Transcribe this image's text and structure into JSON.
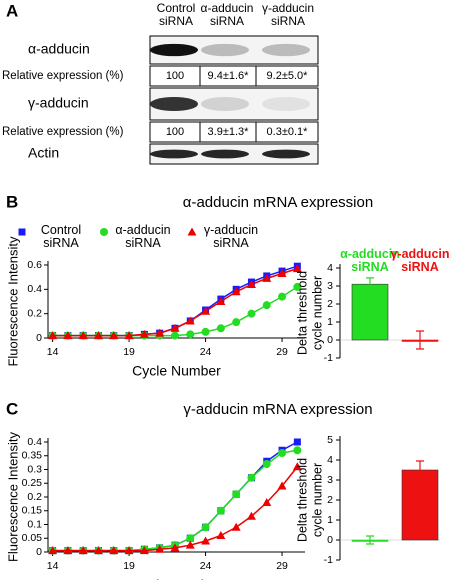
{
  "blot": {
    "panel": "A",
    "columns": [
      "Control siRNA",
      "α-adducin siRNA",
      "γ-adducin siRNA"
    ],
    "rows": [
      {
        "label": "α-adducin"
      },
      {
        "label": "Relative expression (%)",
        "values": [
          "100",
          "9.4±1.6*",
          "9.2±5.0*"
        ]
      },
      {
        "label": "γ-adducin"
      },
      {
        "label": "Relative expression (%)",
        "values": [
          "100",
          "3.9±1.3*",
          "0.3±0.1*"
        ]
      },
      {
        "label": "Actin"
      }
    ]
  },
  "chart_data": [
    {
      "type": "line",
      "panel": "B",
      "title": "α-adducin mRNA expression",
      "xlabel": "Cycle Number",
      "ylabel": "Fluorescence Intensity",
      "x": [
        14,
        15,
        16,
        17,
        18,
        19,
        20,
        21,
        22,
        23,
        24,
        25,
        26,
        27,
        28,
        29,
        30
      ],
      "xlim": [
        13.7,
        30.5
      ],
      "xticks": [
        14,
        19,
        24,
        29
      ],
      "ylim": [
        0,
        0.6
      ],
      "yticks": [
        0,
        0.2,
        0.4,
        0.6
      ],
      "legend": true,
      "series": [
        {
          "name": "Control siRNA",
          "color": "#1a1aff",
          "marker": "square",
          "values": [
            0.02,
            0.02,
            0.02,
            0.02,
            0.02,
            0.02,
            0.03,
            0.04,
            0.08,
            0.14,
            0.23,
            0.32,
            0.4,
            0.46,
            0.51,
            0.55,
            0.59
          ]
        },
        {
          "name": "α-adducin siRNA",
          "color": "#22dd22",
          "marker": "circle",
          "values": [
            0.02,
            0.02,
            0.02,
            0.02,
            0.02,
            0.02,
            0.02,
            0.02,
            0.02,
            0.03,
            0.05,
            0.08,
            0.13,
            0.2,
            0.27,
            0.34,
            0.42
          ]
        },
        {
          "name": "γ-adducin siRNA",
          "color": "#ee0000",
          "marker": "triangle",
          "values": [
            0.02,
            0.02,
            0.02,
            0.02,
            0.02,
            0.02,
            0.03,
            0.04,
            0.08,
            0.14,
            0.22,
            0.3,
            0.38,
            0.44,
            0.49,
            0.53,
            0.57
          ]
        }
      ]
    },
    {
      "type": "bar",
      "ylabel": [
        "Delta threshold",
        "cycle number"
      ],
      "categories": [
        "α-adducin siRNA",
        "γ-adducin siRNA"
      ],
      "colors": [
        "#22dd22",
        "#ee1111"
      ],
      "values": [
        3.1,
        0
      ],
      "errors": [
        0.35,
        0.5
      ],
      "ylim": [
        -1,
        4
      ],
      "yticks": [
        -1,
        0,
        1,
        2,
        3,
        4
      ]
    },
    {
      "type": "line",
      "panel": "C",
      "title": "γ-adducin mRNA expression",
      "xlabel": "Cycle Number",
      "ylabel": "Fluorescence Intensity",
      "x": [
        14,
        15,
        16,
        17,
        18,
        19,
        20,
        21,
        22,
        23,
        24,
        25,
        26,
        27,
        28,
        29,
        30
      ],
      "xlim": [
        13.7,
        30.5
      ],
      "xticks": [
        14,
        19,
        24,
        29
      ],
      "ylim": [
        0,
        0.4
      ],
      "yticks": [
        0,
        0.05,
        0.1,
        0.15,
        0.2,
        0.25,
        0.3,
        0.35,
        0.4
      ],
      "legend": false,
      "series": [
        {
          "name": "Control siRNA",
          "color": "#1a1aff",
          "marker": "square",
          "values": [
            0.005,
            0.005,
            0.005,
            0.005,
            0.005,
            0.005,
            0.01,
            0.015,
            0.025,
            0.05,
            0.09,
            0.15,
            0.21,
            0.27,
            0.33,
            0.37,
            0.4
          ]
        },
        {
          "name": "α-adducin siRNA",
          "color": "#22dd22",
          "marker": "circle",
          "values": [
            0.005,
            0.005,
            0.005,
            0.005,
            0.005,
            0.005,
            0.01,
            0.015,
            0.025,
            0.05,
            0.09,
            0.15,
            0.21,
            0.27,
            0.32,
            0.36,
            0.37
          ]
        },
        {
          "name": "γ-adducin siRNA",
          "color": "#ee0000",
          "marker": "triangle",
          "values": [
            0.005,
            0.005,
            0.005,
            0.005,
            0.005,
            0.005,
            0.005,
            0.01,
            0.015,
            0.025,
            0.04,
            0.06,
            0.09,
            0.13,
            0.18,
            0.24,
            0.31
          ]
        }
      ]
    },
    {
      "type": "bar",
      "ylabel": [
        "Delta threshold",
        "cycle number"
      ],
      "categories": [
        null,
        null
      ],
      "colors": [
        "#22dd22",
        "#ee1111"
      ],
      "values": [
        0,
        3.5
      ],
      "errors": [
        0.2,
        0.45
      ],
      "ylim": [
        -1,
        5
      ],
      "yticks": [
        -1,
        0,
        1,
        2,
        3,
        4,
        5
      ]
    }
  ]
}
